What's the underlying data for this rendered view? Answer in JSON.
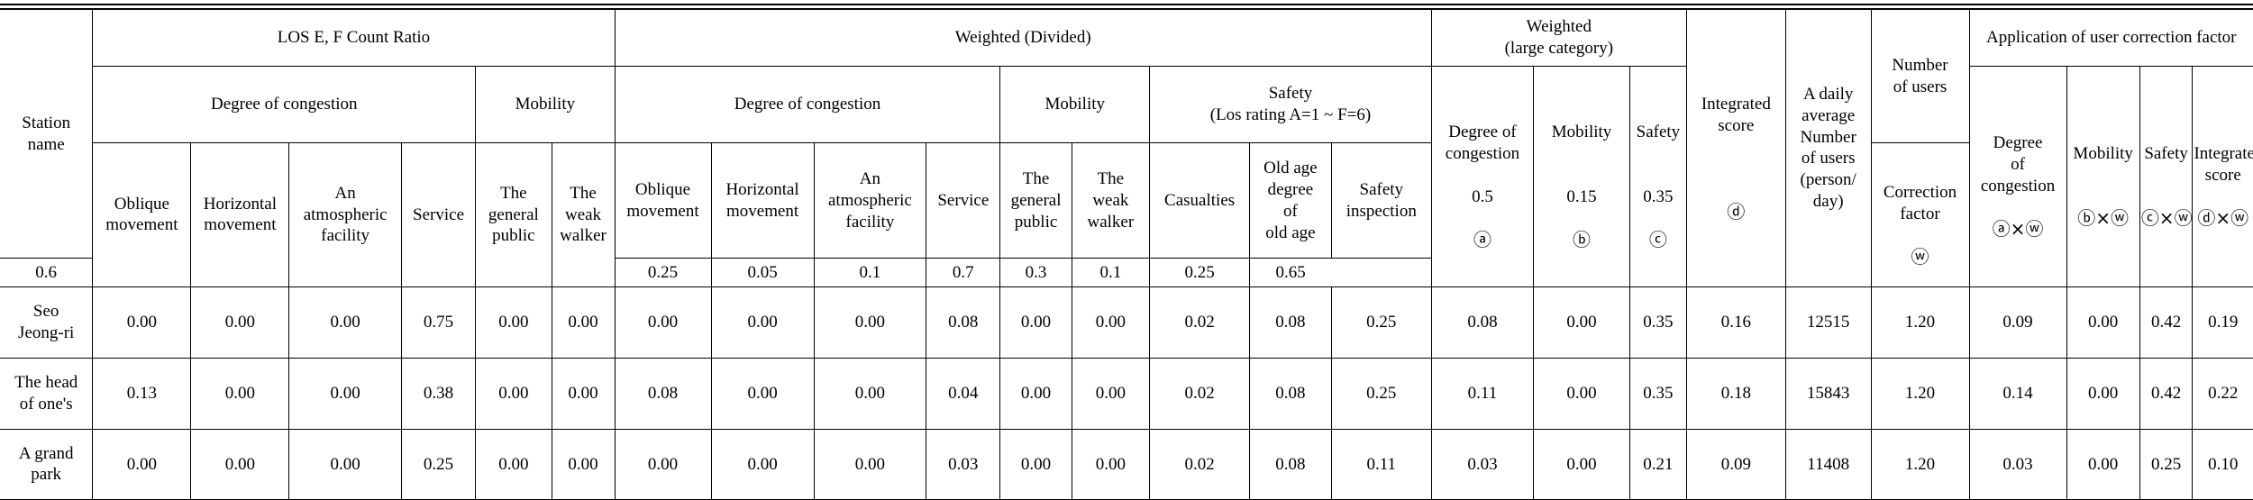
{
  "headers": {
    "station_name": "Station\nname",
    "los_ratio": "LOS E, F Count Ratio",
    "weighted_divided": "Weighted (Divided)",
    "weighted_large": "Weighted\n(large category)",
    "integrated_score": "Integrated\nscore",
    "daily_average": "A daily\naverage\nNumber\nof users\n(person/\nday)",
    "number_of_users": "Number\nof users",
    "user_correction": "Application of user correction factor",
    "degree_congestion": "Degree of congestion",
    "mobility": "Mobility",
    "safety_rating": "Safety\n(Los rating A=1 ~ F=6)",
    "large_congestion": "Degree of\ncongestion\n\n0.5\n\n",
    "large_mobility": "Mobility\n\n\n0.15\n\n",
    "large_safety": "Safety\n\n\n0.35\n\n",
    "mark_a": "ⓐ",
    "mark_b": "ⓑ",
    "mark_c": "ⓒ",
    "mark_d": "ⓓ",
    "correction_factor": "Correction\nfactor\n\n",
    "mark_w": "ⓦ",
    "corr_congestion": "Degree\nof\ncongestion\n\n",
    "corr_mobility": "Mobility\n\n\n",
    "corr_safety": "Safety\n\n\n",
    "corr_integrated": "Integrated\nscore\n\n",
    "corr_aw": "ⓐ×ⓦ",
    "corr_bw": "ⓑ×ⓦ",
    "corr_cw": "ⓒ×ⓦ",
    "corr_dw": "ⓓ×ⓦ",
    "sub": {
      "oblique": "Oblique\nmovement",
      "horizontal": "Horizontal\nmovement",
      "atmospheric": "An\natmospheric\nfacility",
      "service": "Service",
      "general_public": "The\ngeneral\npublic",
      "weak_walker": "The\nweak\nwalker",
      "casualties": "Casualties",
      "old_age": "Old age\ndegree\nof\nold age",
      "safety_inspection": "Safety\ninspection"
    },
    "weights": [
      "0.6",
      "0.25",
      "0.05",
      "0.1",
      "0.7",
      "0.3",
      "0.1",
      "0.25",
      "0.65"
    ]
  },
  "rows": [
    {
      "station": "Seo\nJeong-ri",
      "values": [
        "0.00",
        "0.00",
        "0.00",
        "0.75",
        "0.00",
        "0.00",
        "0.00",
        "0.00",
        "0.00",
        "0.08",
        "0.00",
        "0.00",
        "0.02",
        "0.08",
        "0.25",
        "0.08",
        "0.00",
        "0.35",
        "0.16",
        "12515",
        "1.20",
        "0.09",
        "0.00",
        "0.42",
        "0.19"
      ]
    },
    {
      "station": "The head\nof one's",
      "values": [
        "0.13",
        "0.00",
        "0.00",
        "0.38",
        "0.00",
        "0.00",
        "0.08",
        "0.00",
        "0.00",
        "0.04",
        "0.00",
        "0.00",
        "0.02",
        "0.08",
        "0.25",
        "0.11",
        "0.00",
        "0.35",
        "0.18",
        "15843",
        "1.20",
        "0.14",
        "0.00",
        "0.42",
        "0.22"
      ]
    },
    {
      "station": "A grand\npark",
      "values": [
        "0.00",
        "0.00",
        "0.00",
        "0.25",
        "0.00",
        "0.00",
        "0.00",
        "0.00",
        "0.00",
        "0.03",
        "0.00",
        "0.00",
        "0.02",
        "0.08",
        "0.11",
        "0.03",
        "0.00",
        "0.21",
        "0.09",
        "11408",
        "1.20",
        "0.03",
        "0.00",
        "0.25",
        "0.10"
      ]
    }
  ]
}
